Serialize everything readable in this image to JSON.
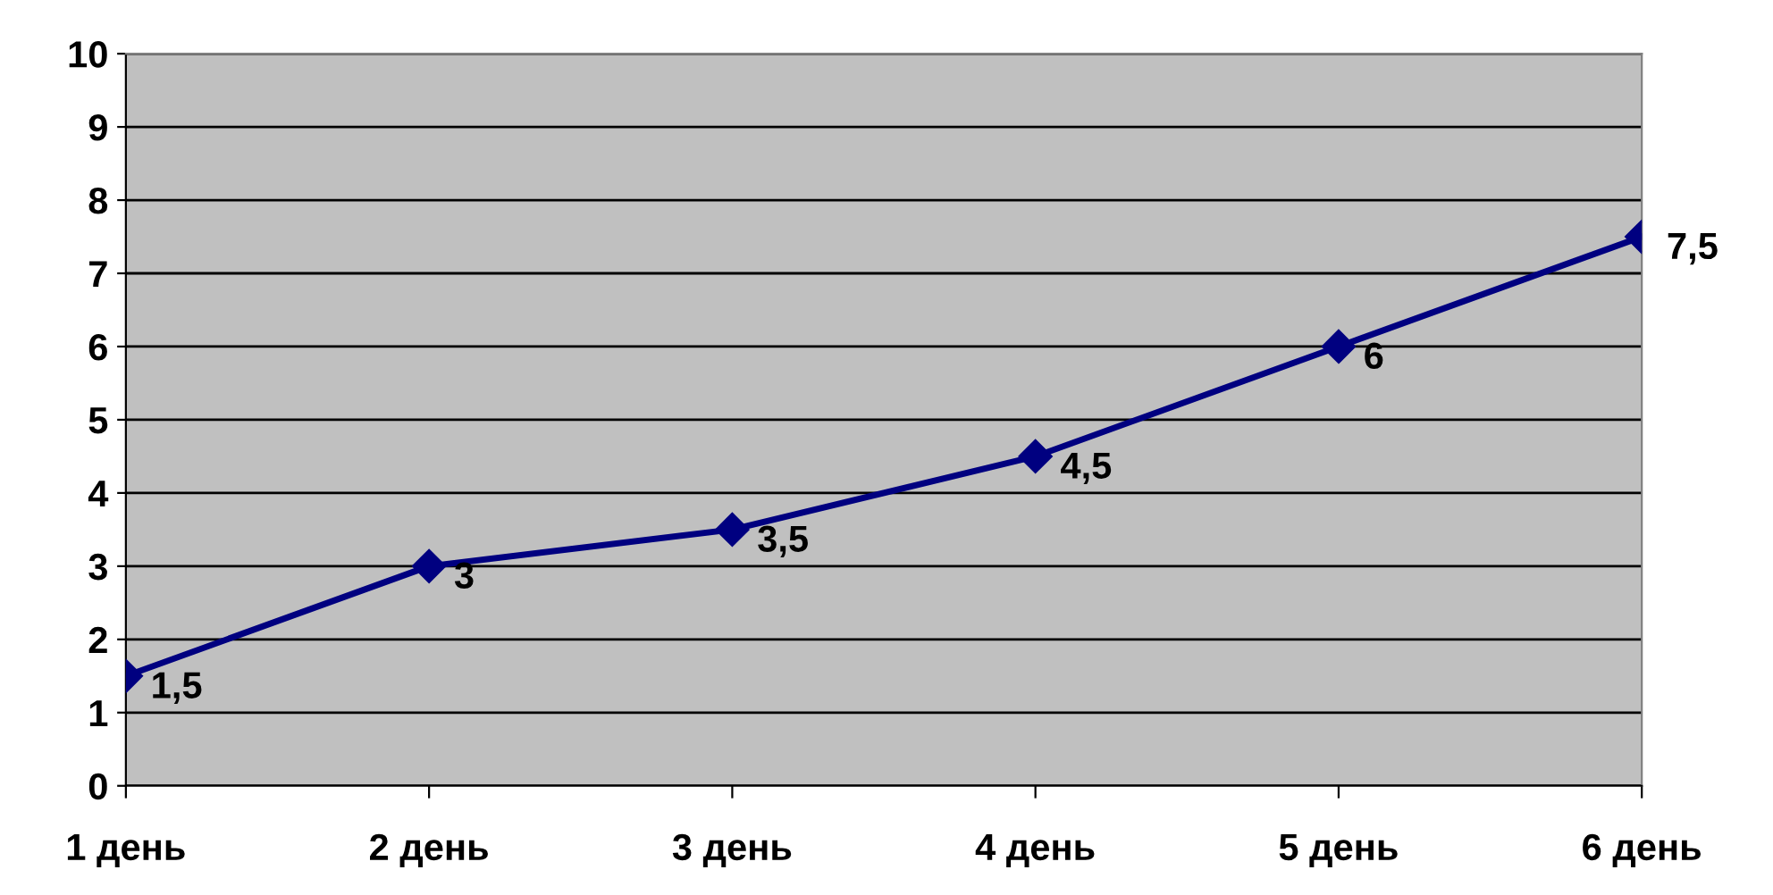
{
  "chart_data": {
    "type": "line",
    "categories": [
      "1 день",
      "2 день",
      "3 день",
      "4 день",
      "5 день",
      "6 день"
    ],
    "series": [
      {
        "color": "#000080",
        "values": [
          1.5,
          3,
          3.5,
          4.5,
          6,
          7.5
        ],
        "value_labels": [
          "1,5",
          "3",
          "3,5",
          "4,5",
          "6",
          "7,5"
        ]
      }
    ],
    "ylim": [
      0,
      10
    ],
    "yticks": [
      0,
      1,
      2,
      3,
      4,
      5,
      6,
      7,
      8,
      9,
      10
    ],
    "grid": "y",
    "marker": "diamond",
    "line_style": "solid"
  }
}
